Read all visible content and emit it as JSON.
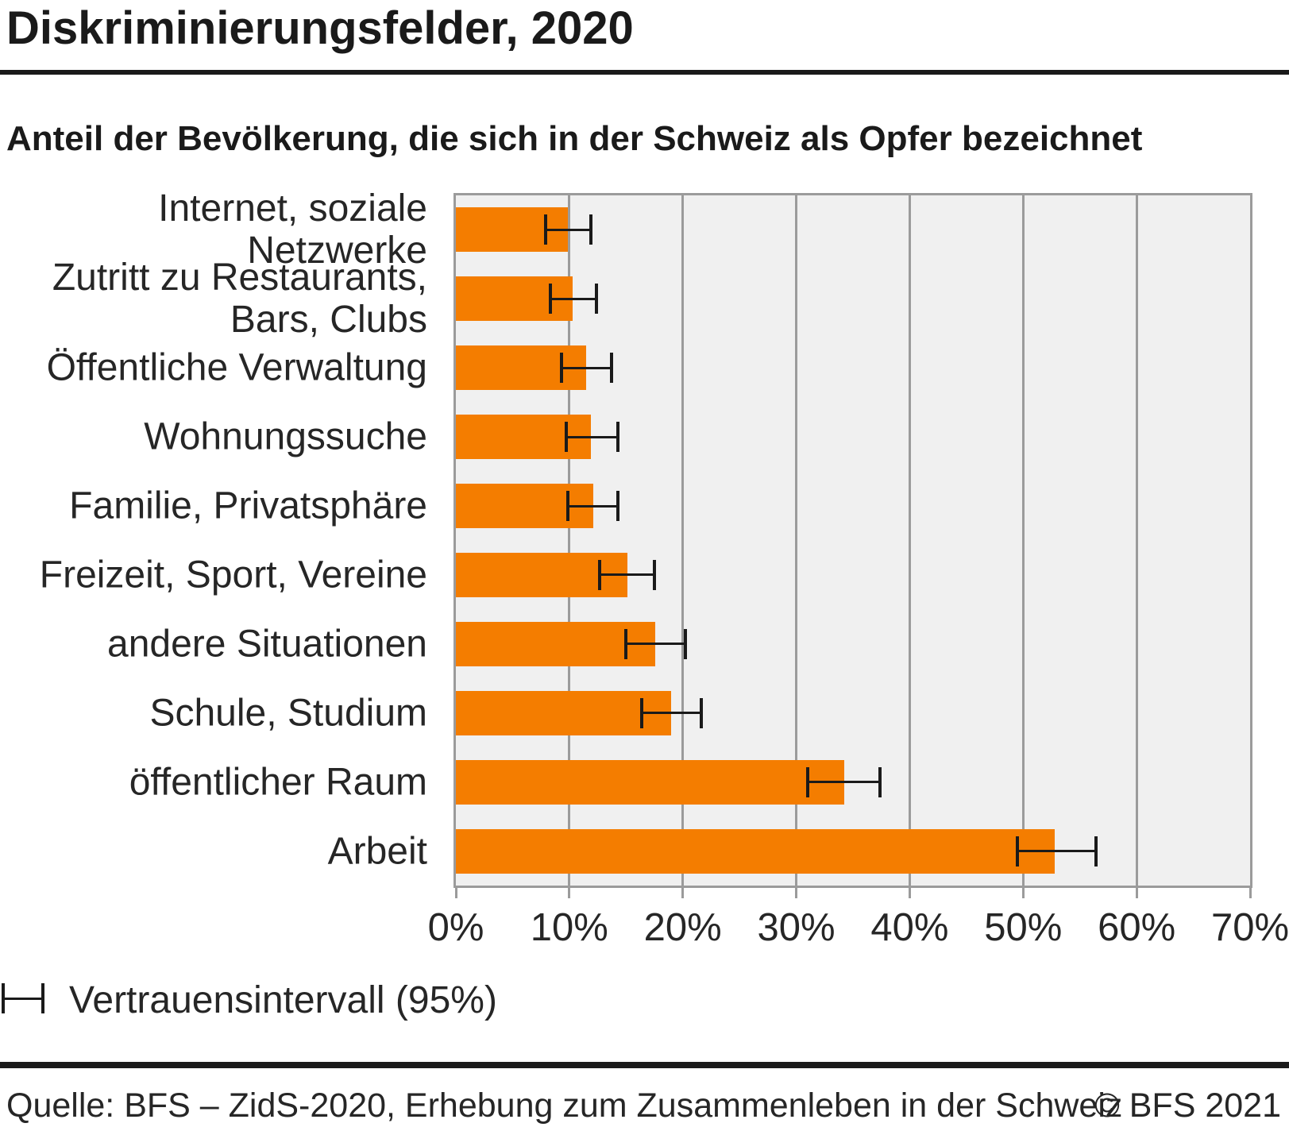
{
  "header": {
    "title": "Diskriminierungsfelder, 2020",
    "subtitle": "Anteil der Bevölkerung, die sich in der Schweiz als Opfer bezeichnet"
  },
  "legend": {
    "label": "Vertrauensintervall (95%)",
    "glyph": "error-bar-icon"
  },
  "footer": {
    "source": "Quelle: BFS – ZidS-2020, Erhebung zum Zusammenleben in der Schweiz",
    "copyright": "© BFS 2021"
  },
  "colors": {
    "bar": "#F47D00",
    "plot_background": "#F0F0F0",
    "grid": "#9B9B9B",
    "error_bar": "#1A1A1A",
    "text": "#1A1A1A"
  },
  "chart_data": {
    "type": "bar",
    "orientation": "horizontal",
    "title": "Diskriminierungsfelder, 2020",
    "subtitle": "Anteil der Bevölkerung, die sich in der Schweiz als Opfer bezeichnet",
    "categories": [
      "Internet, soziale Netzwerke",
      "Zutritt zu Restaurants,\nBars, Clubs",
      "Öffentliche Verwaltung",
      "Wohnungssuche",
      "Familie, Privatsphäre",
      "Freizeit, Sport, Vereine",
      "andere Situationen",
      "Schule, Studium",
      "öffentlicher Raum",
      "Arbeit"
    ],
    "values": [
      9.9,
      10.3,
      11.5,
      11.9,
      12.1,
      15.1,
      17.6,
      19.0,
      34.2,
      52.8
    ],
    "ci_low": [
      7.9,
      8.3,
      9.3,
      9.7,
      9.9,
      12.7,
      15.0,
      16.4,
      31.0,
      49.5
    ],
    "ci_high": [
      11.9,
      12.4,
      13.7,
      14.3,
      14.3,
      17.5,
      20.2,
      21.6,
      37.4,
      56.4
    ],
    "ci_level": "95%",
    "x_tick_labels": [
      "0%",
      "10%",
      "20%",
      "30%",
      "40%",
      "50%",
      "60%",
      "70%"
    ],
    "xlim": [
      0,
      70
    ],
    "xlabel": "",
    "ylabel": "",
    "grid": "vertical",
    "legend_position": "bottom-left",
    "unit": "percent"
  }
}
